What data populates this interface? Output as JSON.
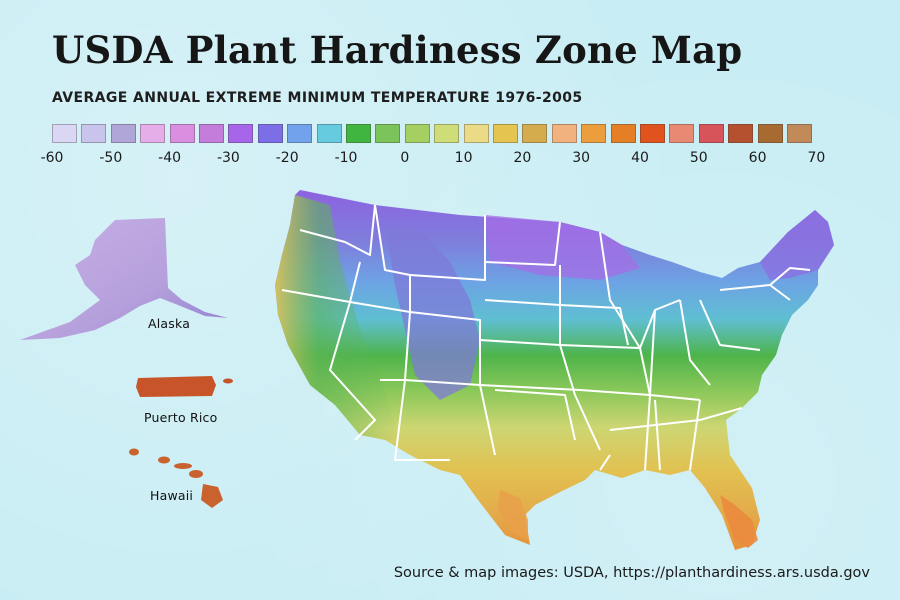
{
  "title": "USDA Plant Hardiness Zone Map",
  "subtitle": "AVERAGE ANNUAL EXTREME MINIMUM TEMPERATURE 1976-2005",
  "legend": {
    "swatch_colors": [
      "#d9d7f4",
      "#c9c4ec",
      "#b1a6d8",
      "#e6aee8",
      "#d98ee0",
      "#c57ddb",
      "#a765ea",
      "#7c6ee6",
      "#72a2ec",
      "#66cbdf",
      "#40b540",
      "#7cc45a",
      "#a6cf61",
      "#cfdd78",
      "#ecdb86",
      "#e5c54f",
      "#d5ac4d",
      "#f1b27f",
      "#ec9d3c",
      "#e57f25",
      "#e0521e",
      "#e88a73",
      "#d7545b",
      "#b5512f",
      "#a76b32",
      "#c18a59"
    ],
    "tick_labels": [
      "-60",
      "-50",
      "-40",
      "-30",
      "-20",
      "-10",
      "0",
      "10",
      "20",
      "30",
      "40",
      "50",
      "60",
      "70"
    ]
  },
  "map": {
    "labels": {
      "alaska": "Alaska",
      "puerto_rico": "Puerto Rico",
      "hawaii": "Hawaii"
    },
    "zone_colors": {
      "cold_north": "#a96ee6",
      "mountain": "#7d78d8",
      "cool": "#6e9fe6",
      "mid": "#6cc2d9",
      "temperate": "#45b14a",
      "mild": "#9ccf5f",
      "warm": "#d8d973",
      "south": "#e3c04f",
      "deep_south": "#e6a64a",
      "coastal_ca": "#e4b55a",
      "florida_tip": "#e9843a",
      "alaska": "#bca4e0",
      "puerto_rico": "#c8552a",
      "hawaii": "#c9622f"
    }
  },
  "source": "Source & map images: USDA, https://planthardiness.ars.usda.gov"
}
